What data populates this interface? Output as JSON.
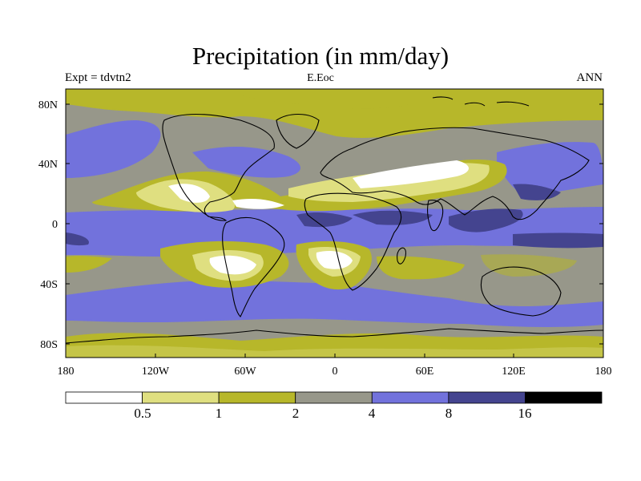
{
  "title": "Precipitation (in mm/day)",
  "subtitle_left": "Expt = tdvtn2",
  "subtitle_center": "E.Eoc",
  "subtitle_right": "ANN",
  "map": {
    "lat_ticks": [
      "80N",
      "40N",
      "0",
      "40S",
      "80S"
    ],
    "lon_ticks": [
      "180",
      "120W",
      "60W",
      "0",
      "60E",
      "120E",
      "180"
    ],
    "palette": [
      "#ffffff",
      "#dfdf80",
      "#b7b72a",
      "#97978a",
      "#7272dc",
      "#44448f",
      "#000000"
    ]
  },
  "colorbar": {
    "levels": [
      "0.5",
      "1",
      "2",
      "4",
      "8",
      "16"
    ],
    "colors": [
      "#ffffff",
      "#dfdf80",
      "#b7b72a",
      "#97978a",
      "#7272dc",
      "#44448f",
      "#000000"
    ]
  }
}
